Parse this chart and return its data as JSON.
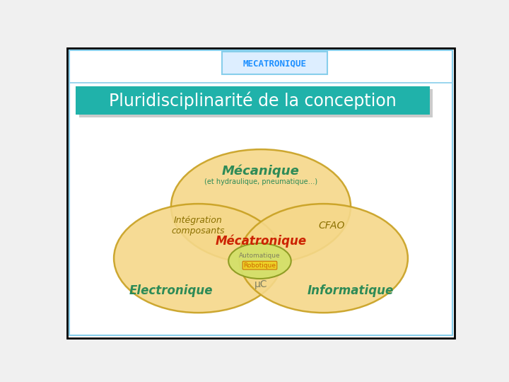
{
  "bg_color": "#f0f0f0",
  "slide_bg": "#ffffff",
  "border_color_outer": "#000000",
  "border_color_inner": "#87CEEB",
  "title_bg": "#20B2AA",
  "title_text": "Pluridisciplinarité de la conception",
  "title_color": "#ffffff",
  "header_text": "MECATRONIQUE",
  "header_color": "#1E90FF",
  "header_box_bg": "#DDEEFF",
  "ellipse_color": "#F5D88A",
  "ellipse_edge": "#C8A020",
  "ellipse_alpha": 0.9,
  "meca_label": "Mécanique",
  "meca_sub": "(et hydraulique, pneumatique…)",
  "meca_color": "#2E8B57",
  "elec_label": "Electronique",
  "elec_color": "#2E8B57",
  "info_label": "Informatique",
  "info_color": "#2E8B57",
  "integration_label": "Intégration\ncomposants",
  "integration_color": "#8B7000",
  "cfao_label": "CFAO",
  "cfao_color": "#8B7000",
  "muc_label": "μC",
  "muc_color": "#808060",
  "mecatronique_label": "Mécatronique",
  "mecatronique_color": "#CC2200",
  "auto_text": "Automatique",
  "robo_text": "Robotique",
  "auto_color": "#808060",
  "robo_color": "#CC6600",
  "inner_ellipse_color": "#D4E06A",
  "inner_ellipse_edge": "#8B9A20",
  "robo_box_color": "#F0D020",
  "robo_box_edge": "#CC6600"
}
